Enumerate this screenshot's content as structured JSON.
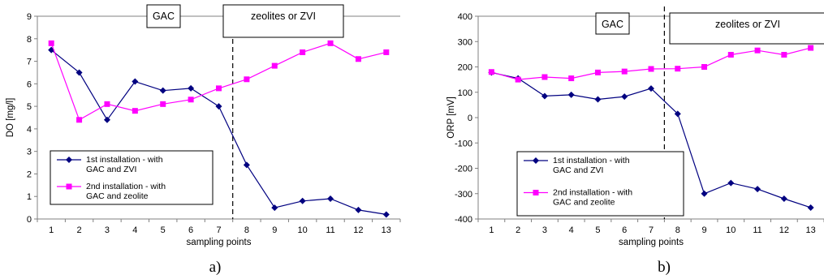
{
  "chart_data": [
    {
      "type": "line",
      "caption": "a)",
      "xlabel": "sampling points",
      "ylabel": "DO [mg/l]",
      "categories": [
        "1",
        "2",
        "3",
        "4",
        "5",
        "6",
        "7",
        "8",
        "9",
        "10",
        "11",
        "12",
        "13"
      ],
      "ylim": [
        0,
        9
      ],
      "yticks": [
        0,
        1,
        2,
        3,
        4,
        5,
        6,
        7,
        8,
        9
      ],
      "grid": "horizontal, top line only",
      "series": [
        {
          "name": "1st installation - with GAC and ZVI",
          "marker": "diamond",
          "color": "#000080",
          "values": [
            7.5,
            6.5,
            4.4,
            6.1,
            5.7,
            5.8,
            5.0,
            2.4,
            0.5,
            0.8,
            0.9,
            0.4,
            0.2
          ]
        },
        {
          "name": "2nd installation - with GAC and zeolite",
          "marker": "square",
          "color": "#ff00ff",
          "values": [
            7.8,
            4.4,
            5.1,
            4.8,
            5.1,
            5.3,
            5.8,
            6.2,
            6.8,
            7.4,
            7.8,
            7.1,
            7.4
          ]
        }
      ],
      "divider_after_category": 7,
      "annotations": [
        "GAC",
        "zeolites or ZVI"
      ],
      "legend_position": "lower-left"
    },
    {
      "type": "line",
      "caption": "b)",
      "xlabel": "sampling points",
      "ylabel": "ORP [mV]",
      "categories": [
        "1",
        "2",
        "3",
        "4",
        "5",
        "6",
        "7",
        "8",
        "9",
        "10",
        "11",
        "12",
        "13"
      ],
      "ylim": [
        -400,
        400
      ],
      "yticks": [
        -400,
        -300,
        -200,
        -100,
        0,
        100,
        200,
        300,
        400
      ],
      "grid": "horizontal, top line only",
      "series": [
        {
          "name": "1st installation - with GAC and ZVI",
          "marker": "diamond",
          "color": "#000080",
          "values": [
            178,
            155,
            85,
            90,
            72,
            83,
            115,
            15,
            -300,
            -258,
            -282,
            -320,
            -355
          ]
        },
        {
          "name": "2nd installation - with GAC and zeolite",
          "marker": "square",
          "color": "#ff00ff",
          "values": [
            180,
            150,
            160,
            155,
            178,
            182,
            192,
            193,
            200,
            248,
            265,
            248,
            275
          ]
        }
      ],
      "divider_after_category": 7,
      "annotations": [
        "GAC",
        "zeolites or ZVI"
      ],
      "legend_position": "lower-left"
    }
  ],
  "legend_lines": {
    "s1": [
      "1st installation - with",
      "GAC and ZVI"
    ],
    "s2": [
      "2nd installation - with",
      "GAC and zeolite"
    ]
  }
}
